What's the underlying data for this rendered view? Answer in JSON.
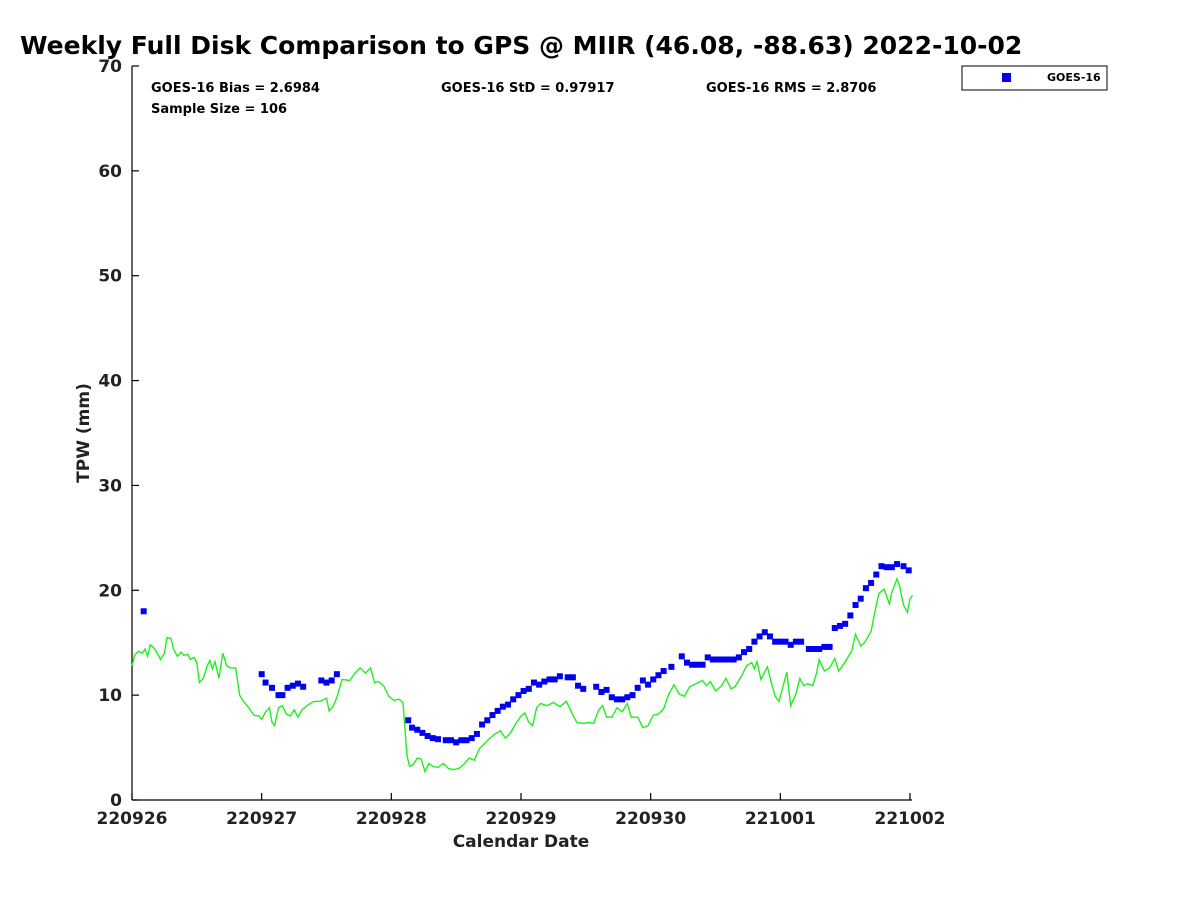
{
  "chart_data": {
    "type": "scatter",
    "title": "Weekly Full Disk Comparison to GPS @ MIIR (46.08, -88.63) 2022-10-02",
    "xlabel": "Calendar Date",
    "ylabel": "TPW (mm)",
    "xlim": [
      0,
      6
    ],
    "ylim": [
      0,
      70
    ],
    "x_ticks": [
      0,
      1,
      2,
      3,
      4,
      5,
      6
    ],
    "x_tick_labels": [
      "220926",
      "220927",
      "220928",
      "220929",
      "220930",
      "221001",
      "221002"
    ],
    "y_ticks": [
      0,
      10,
      20,
      30,
      40,
      50,
      60,
      70
    ],
    "y_tick_labels": [
      "0",
      "10",
      "20",
      "30",
      "40",
      "50",
      "60",
      "70"
    ],
    "stats": {
      "bias": "GOES-16 Bias = 2.6984",
      "std": "GOES-16 StD = 0.97917",
      "rms": "GOES-16 RMS = 2.8706",
      "sample": "Sample Size = 106"
    },
    "legend": {
      "position": "top-right",
      "entries": [
        "GOES-16"
      ]
    },
    "colors": {
      "goes": "#0000ee",
      "gps": "#22ee22",
      "axis": "#000000"
    },
    "series": [
      {
        "name": "GOES-16",
        "style": "square-marker",
        "points": [
          [
            0.09,
            18.0
          ],
          [
            1.0,
            12.0
          ],
          [
            1.03,
            11.2
          ],
          [
            1.08,
            10.7
          ],
          [
            1.13,
            10.0
          ],
          [
            1.16,
            10.0
          ],
          [
            1.2,
            10.7
          ],
          [
            1.24,
            10.9
          ],
          [
            1.28,
            11.1
          ],
          [
            1.32,
            10.8
          ],
          [
            1.46,
            11.4
          ],
          [
            1.5,
            11.2
          ],
          [
            1.54,
            11.4
          ],
          [
            1.58,
            12.0
          ],
          [
            2.13,
            7.6
          ],
          [
            2.16,
            6.9
          ],
          [
            2.2,
            6.7
          ],
          [
            2.24,
            6.4
          ],
          [
            2.28,
            6.1
          ],
          [
            2.32,
            5.9
          ],
          [
            2.36,
            5.8
          ],
          [
            2.42,
            5.7
          ],
          [
            2.46,
            5.7
          ],
          [
            2.5,
            5.5
          ],
          [
            2.54,
            5.7
          ],
          [
            2.58,
            5.7
          ],
          [
            2.62,
            5.9
          ],
          [
            2.66,
            6.3
          ],
          [
            2.7,
            7.2
          ],
          [
            2.74,
            7.6
          ],
          [
            2.78,
            8.1
          ],
          [
            2.82,
            8.5
          ],
          [
            2.86,
            8.9
          ],
          [
            2.9,
            9.1
          ],
          [
            2.94,
            9.6
          ],
          [
            2.98,
            10.0
          ],
          [
            3.02,
            10.4
          ],
          [
            3.06,
            10.6
          ],
          [
            3.1,
            11.2
          ],
          [
            3.14,
            11.0
          ],
          [
            3.18,
            11.3
          ],
          [
            3.22,
            11.5
          ],
          [
            3.26,
            11.5
          ],
          [
            3.3,
            11.8
          ],
          [
            3.36,
            11.7
          ],
          [
            3.4,
            11.7
          ],
          [
            3.44,
            10.9
          ],
          [
            3.48,
            10.6
          ],
          [
            3.58,
            10.8
          ],
          [
            3.62,
            10.3
          ],
          [
            3.66,
            10.5
          ],
          [
            3.7,
            9.8
          ],
          [
            3.74,
            9.6
          ],
          [
            3.78,
            9.6
          ],
          [
            3.82,
            9.8
          ],
          [
            3.86,
            10.0
          ],
          [
            3.9,
            10.7
          ],
          [
            3.94,
            11.4
          ],
          [
            3.98,
            11.0
          ],
          [
            4.02,
            11.5
          ],
          [
            4.06,
            11.9
          ],
          [
            4.1,
            12.3
          ],
          [
            4.16,
            12.7
          ],
          [
            4.24,
            13.7
          ],
          [
            4.28,
            13.1
          ],
          [
            4.32,
            12.9
          ],
          [
            4.36,
            12.9
          ],
          [
            4.4,
            12.9
          ],
          [
            4.44,
            13.6
          ],
          [
            4.48,
            13.4
          ],
          [
            4.52,
            13.4
          ],
          [
            4.56,
            13.4
          ],
          [
            4.6,
            13.4
          ],
          [
            4.64,
            13.4
          ],
          [
            4.68,
            13.6
          ],
          [
            4.72,
            14.1
          ],
          [
            4.76,
            14.4
          ],
          [
            4.8,
            15.1
          ],
          [
            4.84,
            15.6
          ],
          [
            4.88,
            16.0
          ],
          [
            4.92,
            15.6
          ],
          [
            4.96,
            15.1
          ],
          [
            5.0,
            15.1
          ],
          [
            5.04,
            15.1
          ],
          [
            5.08,
            14.8
          ],
          [
            5.12,
            15.1
          ],
          [
            5.16,
            15.1
          ],
          [
            5.22,
            14.4
          ],
          [
            5.26,
            14.4
          ],
          [
            5.3,
            14.4
          ],
          [
            5.34,
            14.6
          ],
          [
            5.38,
            14.6
          ],
          [
            5.42,
            16.4
          ],
          [
            5.46,
            16.6
          ],
          [
            5.5,
            16.8
          ],
          [
            5.54,
            17.6
          ],
          [
            5.58,
            18.6
          ],
          [
            5.62,
            19.2
          ],
          [
            5.66,
            20.2
          ],
          [
            5.7,
            20.7
          ],
          [
            5.74,
            21.5
          ],
          [
            5.78,
            22.3
          ],
          [
            5.82,
            22.2
          ],
          [
            5.86,
            22.2
          ],
          [
            5.9,
            22.5
          ],
          [
            5.95,
            22.3
          ],
          [
            5.99,
            21.9
          ]
        ]
      },
      {
        "name": "GPS",
        "style": "line",
        "points": [
          [
            0.0,
            12.8
          ],
          [
            0.02,
            13.8
          ],
          [
            0.05,
            14.2
          ],
          [
            0.08,
            14.0
          ],
          [
            0.1,
            14.4
          ],
          [
            0.12,
            13.7
          ],
          [
            0.14,
            14.8
          ],
          [
            0.17,
            14.5
          ],
          [
            0.2,
            13.9
          ],
          [
            0.22,
            13.4
          ],
          [
            0.25,
            14.0
          ],
          [
            0.27,
            15.5
          ],
          [
            0.3,
            15.4
          ],
          [
            0.32,
            14.4
          ],
          [
            0.35,
            13.7
          ],
          [
            0.38,
            14.1
          ],
          [
            0.4,
            13.8
          ],
          [
            0.43,
            13.9
          ],
          [
            0.45,
            13.4
          ],
          [
            0.48,
            13.6
          ],
          [
            0.5,
            13.1
          ],
          [
            0.52,
            11.2
          ],
          [
            0.55,
            11.6
          ],
          [
            0.58,
            12.8
          ],
          [
            0.6,
            13.3
          ],
          [
            0.62,
            12.5
          ],
          [
            0.64,
            13.2
          ],
          [
            0.67,
            11.6
          ],
          [
            0.7,
            14.0
          ],
          [
            0.73,
            12.8
          ],
          [
            0.76,
            12.6
          ],
          [
            0.8,
            12.6
          ],
          [
            0.83,
            10.0
          ],
          [
            0.86,
            9.4
          ],
          [
            0.9,
            8.8
          ],
          [
            0.94,
            8.1
          ],
          [
            0.98,
            8.0
          ],
          [
            1.0,
            7.7
          ],
          [
            1.03,
            8.4
          ],
          [
            1.06,
            8.8
          ],
          [
            1.08,
            7.4
          ],
          [
            1.1,
            7.1
          ],
          [
            1.13,
            8.8
          ],
          [
            1.16,
            9.0
          ],
          [
            1.19,
            8.2
          ],
          [
            1.22,
            8.0
          ],
          [
            1.25,
            8.6
          ],
          [
            1.28,
            7.9
          ],
          [
            1.31,
            8.6
          ],
          [
            1.35,
            9.0
          ],
          [
            1.4,
            9.4
          ],
          [
            1.45,
            9.4
          ],
          [
            1.5,
            9.7
          ],
          [
            1.52,
            8.5
          ],
          [
            1.55,
            8.9
          ],
          [
            1.58,
            9.8
          ],
          [
            1.62,
            11.5
          ],
          [
            1.68,
            11.4
          ],
          [
            1.72,
            12.1
          ],
          [
            1.76,
            12.6
          ],
          [
            1.8,
            12.1
          ],
          [
            1.84,
            12.6
          ],
          [
            1.87,
            11.2
          ],
          [
            1.9,
            11.3
          ],
          [
            1.94,
            10.9
          ],
          [
            1.98,
            9.9
          ],
          [
            2.02,
            9.5
          ],
          [
            2.06,
            9.6
          ],
          [
            2.09,
            9.3
          ],
          [
            2.12,
            4.3
          ],
          [
            2.14,
            3.2
          ],
          [
            2.17,
            3.4
          ],
          [
            2.2,
            4.0
          ],
          [
            2.23,
            3.9
          ],
          [
            2.26,
            2.7
          ],
          [
            2.29,
            3.5
          ],
          [
            2.32,
            3.2
          ],
          [
            2.36,
            3.1
          ],
          [
            2.4,
            3.5
          ],
          [
            2.44,
            3.0
          ],
          [
            2.48,
            2.9
          ],
          [
            2.52,
            3.0
          ],
          [
            2.56,
            3.4
          ],
          [
            2.6,
            4.0
          ],
          [
            2.64,
            3.8
          ],
          [
            2.68,
            4.9
          ],
          [
            2.72,
            5.4
          ],
          [
            2.76,
            5.9
          ],
          [
            2.8,
            6.3
          ],
          [
            2.84,
            6.6
          ],
          [
            2.88,
            5.9
          ],
          [
            2.92,
            6.4
          ],
          [
            2.96,
            7.3
          ],
          [
            3.0,
            8.0
          ],
          [
            3.03,
            8.3
          ],
          [
            3.06,
            7.4
          ],
          [
            3.09,
            7.1
          ],
          [
            3.12,
            8.8
          ],
          [
            3.15,
            9.2
          ],
          [
            3.2,
            9.0
          ],
          [
            3.25,
            9.3
          ],
          [
            3.3,
            8.9
          ],
          [
            3.35,
            9.4
          ],
          [
            3.4,
            8.1
          ],
          [
            3.43,
            7.4
          ],
          [
            3.48,
            7.3
          ],
          [
            3.52,
            7.4
          ],
          [
            3.56,
            7.3
          ],
          [
            3.6,
            8.6
          ],
          [
            3.63,
            9.0
          ],
          [
            3.66,
            7.9
          ],
          [
            3.7,
            7.9
          ],
          [
            3.74,
            8.8
          ],
          [
            3.78,
            8.4
          ],
          [
            3.82,
            9.2
          ],
          [
            3.85,
            7.9
          ],
          [
            3.88,
            7.9
          ],
          [
            3.9,
            7.9
          ],
          [
            3.94,
            6.9
          ],
          [
            3.98,
            7.1
          ],
          [
            4.02,
            8.1
          ],
          [
            4.06,
            8.2
          ],
          [
            4.1,
            8.7
          ],
          [
            4.14,
            10.1
          ],
          [
            4.18,
            11.0
          ],
          [
            4.22,
            10.1
          ],
          [
            4.26,
            9.9
          ],
          [
            4.3,
            10.8
          ],
          [
            4.35,
            11.1
          ],
          [
            4.4,
            11.4
          ],
          [
            4.43,
            10.9
          ],
          [
            4.46,
            11.3
          ],
          [
            4.5,
            10.4
          ],
          [
            4.54,
            10.8
          ],
          [
            4.58,
            11.6
          ],
          [
            4.62,
            10.6
          ],
          [
            4.65,
            10.8
          ],
          [
            4.7,
            11.8
          ],
          [
            4.74,
            12.8
          ],
          [
            4.78,
            13.1
          ],
          [
            4.8,
            12.5
          ],
          [
            4.82,
            13.2
          ],
          [
            4.85,
            11.5
          ],
          [
            4.9,
            12.7
          ],
          [
            4.93,
            11.2
          ],
          [
            4.96,
            9.9
          ],
          [
            4.99,
            9.4
          ],
          [
            5.02,
            10.8
          ],
          [
            5.05,
            12.2
          ],
          [
            5.08,
            9.0
          ],
          [
            5.12,
            10.1
          ],
          [
            5.15,
            11.6
          ],
          [
            5.18,
            10.9
          ],
          [
            5.21,
            11.1
          ],
          [
            5.25,
            10.9
          ],
          [
            5.28,
            12.1
          ],
          [
            5.3,
            13.4
          ],
          [
            5.34,
            12.3
          ],
          [
            5.38,
            12.6
          ],
          [
            5.42,
            13.5
          ],
          [
            5.45,
            12.3
          ],
          [
            5.48,
            12.8
          ],
          [
            5.52,
            13.6
          ],
          [
            5.55,
            14.2
          ],
          [
            5.58,
            15.8
          ],
          [
            5.62,
            14.7
          ],
          [
            5.65,
            15.0
          ],
          [
            5.7,
            16.1
          ],
          [
            5.73,
            18.0
          ],
          [
            5.76,
            19.7
          ],
          [
            5.8,
            20.1
          ],
          [
            5.84,
            18.7
          ],
          [
            5.86,
            19.8
          ],
          [
            5.9,
            21.1
          ],
          [
            5.92,
            20.4
          ],
          [
            5.95,
            18.6
          ],
          [
            5.98,
            17.9
          ],
          [
            6.0,
            19.2
          ],
          [
            6.02,
            19.5
          ]
        ]
      }
    ]
  }
}
